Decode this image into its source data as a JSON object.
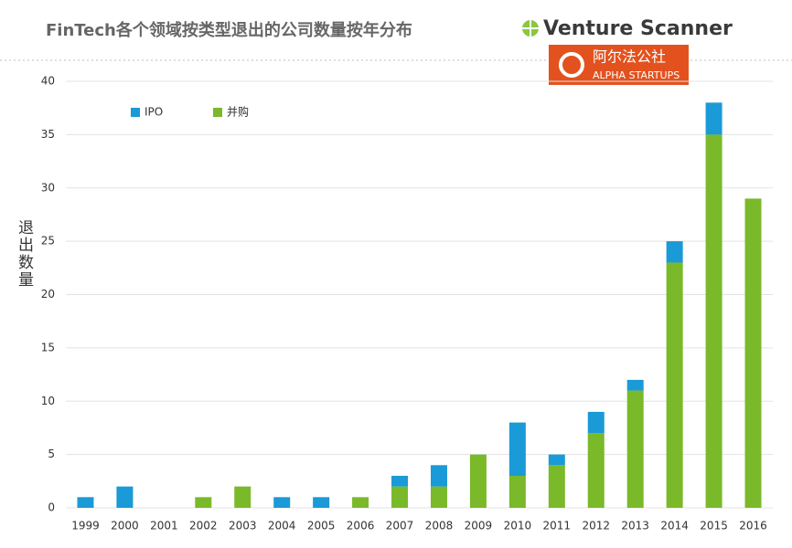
{
  "chart_data": {
    "type": "stacked-bar",
    "title": "FinTech各个领域按类型退出的公司数量按年分布",
    "y_label": "退出数量",
    "categories": [
      "1999",
      "2000",
      "2001",
      "2002",
      "2003",
      "2004",
      "2005",
      "2006",
      "2007",
      "2008",
      "2009",
      "2010",
      "2011",
      "2012",
      "2013",
      "2014",
      "2015",
      "2016"
    ],
    "series": [
      {
        "name": "IPO",
        "color": "#1a9ad6",
        "values": [
          1,
          2,
          0,
          0,
          0,
          1,
          1,
          0,
          1,
          2,
          0,
          5,
          1,
          2,
          1,
          2,
          3,
          0
        ]
      },
      {
        "name": "并购",
        "color": "#7ab929",
        "values": [
          0,
          0,
          0,
          1,
          2,
          0,
          0,
          1,
          2,
          2,
          5,
          3,
          4,
          7,
          11,
          23,
          35,
          29
        ]
      }
    ],
    "ylim": [
      0,
      40
    ],
    "yticks": [
      0,
      5,
      10,
      15,
      20,
      25,
      30,
      35,
      40
    ],
    "grid": true,
    "legend": "top-left"
  },
  "branding": {
    "venture_scanner": "Venture Scanner",
    "alpha_name": "阿尔法公社",
    "alpha_sub": "ALPHA STARTUPS"
  }
}
